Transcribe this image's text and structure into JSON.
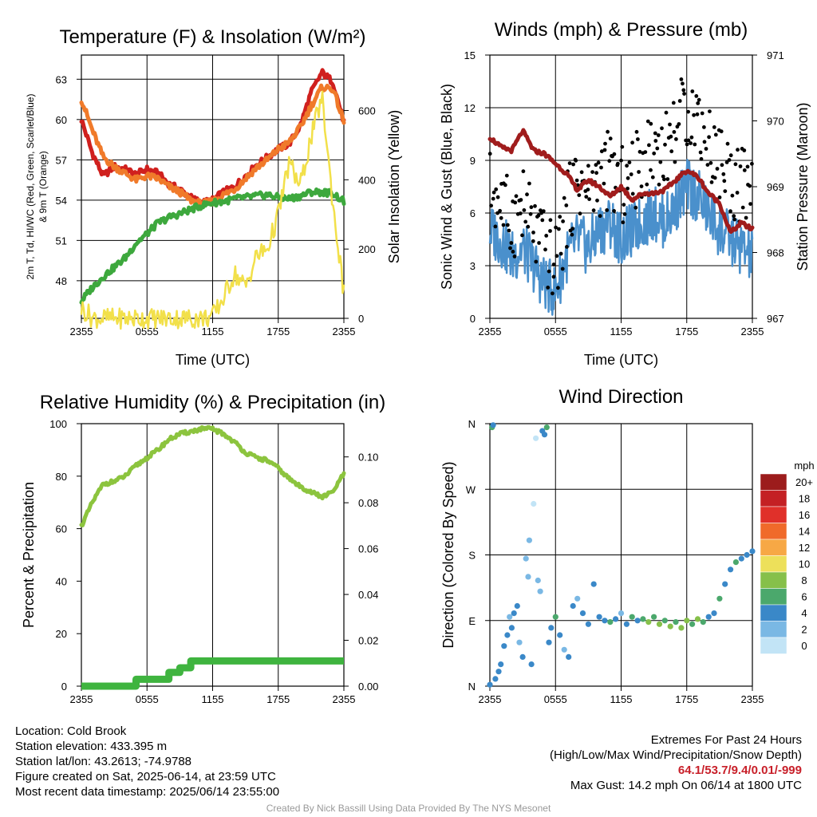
{
  "chart_data": [
    {
      "type": "line",
      "title": "Temperature (F) & Insolation (W/m²)",
      "xlabel": "Time (UTC)",
      "ylabel": "2m T, Td, HI/WC (Red, Green, Scarlet/Blue) & 9m T (Orange)",
      "y2label": "Solar Insolation (Yellow)",
      "xticks": [
        "2355",
        "0555",
        "1155",
        "1755",
        "2355"
      ],
      "yticks": [
        48,
        51,
        54,
        57,
        60,
        63
      ],
      "y2ticks": [
        0,
        200,
        400,
        600
      ],
      "ylim": [
        45.2,
        64.8
      ],
      "y2lim": [
        0,
        760
      ],
      "grid": true,
      "x": [
        0,
        1,
        2,
        3,
        4,
        5,
        6,
        7,
        8,
        9,
        10,
        11,
        12,
        13,
        14,
        15,
        16,
        17,
        18,
        19,
        20,
        21,
        22,
        23,
        24
      ],
      "series": [
        {
          "name": "2m T",
          "color": "#d0201e",
          "axis": "left",
          "values": [
            60.0,
            57.5,
            55.8,
            56.5,
            56.3,
            55.9,
            56.3,
            56.0,
            55.2,
            54.8,
            54.2,
            53.8,
            54.0,
            54.6,
            55.0,
            55.8,
            56.6,
            57.2,
            57.8,
            58.2,
            59.5,
            62.0,
            63.5,
            62.8,
            59.8
          ]
        },
        {
          "name": "9m T",
          "color": "#f07a2a",
          "axis": "left",
          "values": [
            61.5,
            59.2,
            57.2,
            56.5,
            56.0,
            55.5,
            55.8,
            55.6,
            55.0,
            54.6,
            54.0,
            53.7,
            53.9,
            54.4,
            54.8,
            55.6,
            56.4,
            57.0,
            57.8,
            58.3,
            59.4,
            61.0,
            62.4,
            62.3,
            59.8
          ]
        },
        {
          "name": "Td",
          "color": "#3da83d",
          "axis": "left",
          "values": [
            46.5,
            47.5,
            48.3,
            49.0,
            49.7,
            50.8,
            51.5,
            52.3,
            52.7,
            53.0,
            53.3,
            53.6,
            53.8,
            53.9,
            54.1,
            54.2,
            54.3,
            54.4,
            54.2,
            54.1,
            54.3,
            54.6,
            54.6,
            54.5,
            53.9
          ]
        },
        {
          "name": "Solar Insolation",
          "color": "#f2e04a",
          "axis": "right",
          "values": [
            30,
            2,
            0,
            0,
            0,
            0,
            0,
            0,
            0,
            0,
            0,
            0,
            5,
            60,
            130,
            90,
            180,
            200,
            300,
            450,
            380,
            520,
            640,
            330,
            70
          ]
        }
      ]
    },
    {
      "type": "line",
      "title": "Winds (mph) & Pressure (mb)",
      "xlabel": "Time (UTC)",
      "ylabel": "Sonic Wind & Gust (Blue, Black)",
      "y2label": "Station Pressure (Maroon)",
      "xticks": [
        "2355",
        "0555",
        "1155",
        "1755",
        "2355"
      ],
      "yticks": [
        0,
        3,
        6,
        9,
        12,
        15
      ],
      "y2ticks": [
        967,
        968,
        969,
        970,
        971
      ],
      "ylim": [
        0,
        15
      ],
      "y2lim": [
        967,
        971
      ],
      "grid": true,
      "x": [
        0,
        1,
        2,
        3,
        4,
        5,
        6,
        7,
        8,
        9,
        10,
        11,
        12,
        13,
        14,
        15,
        16,
        17,
        18,
        19,
        20,
        21,
        22,
        23,
        24
      ],
      "series": [
        {
          "name": "Sonic Wind",
          "color": "#4a90cc",
          "axis": "left",
          "values": [
            5.0,
            4.5,
            3.5,
            4.0,
            3.0,
            2.0,
            1.5,
            3.5,
            4.5,
            4.0,
            5.0,
            5.5,
            4.5,
            5.0,
            5.5,
            6.0,
            5.5,
            6.5,
            7.5,
            7.0,
            6.0,
            5.0,
            4.5,
            4.0,
            3.5
          ]
        },
        {
          "name": "Gust",
          "color": "#000000",
          "axis": "left",
          "values": [
            7.5,
            6.5,
            5.5,
            6.5,
            5.0,
            4.0,
            3.0,
            6.0,
            8.0,
            7.0,
            8.0,
            8.5,
            7.5,
            8.0,
            9.0,
            10.0,
            9.5,
            11.0,
            12.0,
            11.5,
            10.0,
            9.0,
            8.0,
            7.5,
            7.0
          ]
        },
        {
          "name": "Station Pressure",
          "color": "#a01c1c",
          "axis": "right",
          "values": [
            969.75,
            969.6,
            969.55,
            969.85,
            969.55,
            969.5,
            969.35,
            969.2,
            968.95,
            969.1,
            969.0,
            968.85,
            969.0,
            968.8,
            968.9,
            968.9,
            968.95,
            969.1,
            969.25,
            969.15,
            968.9,
            968.75,
            968.3,
            968.45,
            968.35
          ]
        }
      ]
    },
    {
      "type": "line",
      "title": "Relative Humidity (%) & Precipitation (in)",
      "xlabel": "",
      "ylabel": "Percent & Precipitation",
      "xticks": [
        "2355",
        "0555",
        "1155",
        "1755",
        "2355"
      ],
      "yticks": [
        0,
        20,
        40,
        60,
        80,
        100
      ],
      "y2ticks": [
        "0.00",
        "0.02",
        "0.04",
        "0.06",
        "0.08",
        "0.10"
      ],
      "ylim": [
        0,
        100
      ],
      "y2lim": [
        0,
        0.1145
      ],
      "grid": true,
      "x": [
        0,
        1,
        2,
        3,
        4,
        5,
        6,
        7,
        8,
        9,
        10,
        11,
        12,
        13,
        14,
        15,
        16,
        17,
        18,
        19,
        20,
        21,
        22,
        23,
        24
      ],
      "series": [
        {
          "name": "Relative Humidity",
          "color": "#8cc43e",
          "axis": "left",
          "values": [
            61,
            70,
            77,
            78,
            80,
            84,
            87,
            90,
            94,
            96,
            97,
            98,
            98,
            96,
            93,
            89,
            87,
            86,
            83,
            79,
            76,
            74,
            72,
            74,
            81
          ]
        },
        {
          "name": "Precipitation",
          "color": "#3fb43f",
          "axis": "right",
          "values": [
            0,
            0,
            0,
            0,
            0,
            0.003,
            0.003,
            0.003,
            0.006,
            0.008,
            0.011,
            0.011,
            0.011,
            0.011,
            0.011,
            0.011,
            0.011,
            0.011,
            0.011,
            0.011,
            0.011,
            0.011,
            0.011,
            0.011,
            0.011
          ]
        }
      ]
    },
    {
      "type": "scatter",
      "title": "Wind Direction",
      "xlabel": "",
      "ylabel": "Direction (Colored By Speed)",
      "xticks": [
        "2355",
        "0555",
        "1155",
        "1755",
        "2355"
      ],
      "yticks": [
        "N",
        "E",
        "S",
        "W",
        "N"
      ],
      "ylim": [
        0,
        360
      ],
      "grid": true,
      "legend": {
        "title": "mph",
        "labels": [
          "20+",
          "18",
          "16",
          "14",
          "12",
          "10",
          "8",
          "6",
          "4",
          "2",
          "0"
        ],
        "colors": [
          "#9c1c1c",
          "#c42024",
          "#e0302a",
          "#f06a2a",
          "#f7a845",
          "#ede05a",
          "#86c04a",
          "#4ba86c",
          "#3a88c8",
          "#7ab8e4",
          "#c2e4f6"
        ],
        "placement": "right"
      },
      "points": [
        {
          "x": 0.0,
          "dir": 2,
          "speed": 4
        },
        {
          "x": 0.2,
          "dir": 355,
          "speed": 6
        },
        {
          "x": 0.3,
          "dir": 358,
          "speed": 4
        },
        {
          "x": 0.5,
          "dir": 10,
          "speed": 4
        },
        {
          "x": 0.8,
          "dir": 20,
          "speed": 4
        },
        {
          "x": 1.0,
          "dir": 30,
          "speed": 4
        },
        {
          "x": 1.3,
          "dir": 55,
          "speed": 4
        },
        {
          "x": 1.6,
          "dir": 70,
          "speed": 4
        },
        {
          "x": 1.8,
          "dir": 95,
          "speed": 2
        },
        {
          "x": 2.0,
          "dir": 80,
          "speed": 4
        },
        {
          "x": 2.2,
          "dir": 100,
          "speed": 4
        },
        {
          "x": 2.5,
          "dir": 110,
          "speed": 4
        },
        {
          "x": 2.7,
          "dir": 60,
          "speed": 2
        },
        {
          "x": 3.0,
          "dir": 40,
          "speed": 4
        },
        {
          "x": 3.3,
          "dir": 175,
          "speed": 2
        },
        {
          "x": 3.5,
          "dir": 150,
          "speed": 2
        },
        {
          "x": 3.6,
          "dir": 200,
          "speed": 2
        },
        {
          "x": 3.8,
          "dir": 30,
          "speed": 4
        },
        {
          "x": 4.0,
          "dir": 250,
          "speed": 0
        },
        {
          "x": 4.2,
          "dir": 340,
          "speed": 0
        },
        {
          "x": 4.4,
          "dir": 145,
          "speed": 2
        },
        {
          "x": 4.6,
          "dir": 130,
          "speed": 2
        },
        {
          "x": 4.8,
          "dir": 350,
          "speed": 4
        },
        {
          "x": 5.0,
          "dir": 345,
          "speed": 4
        },
        {
          "x": 5.2,
          "dir": 355,
          "speed": 6
        },
        {
          "x": 5.4,
          "dir": 60,
          "speed": 4
        },
        {
          "x": 5.6,
          "dir": 80,
          "speed": 4
        },
        {
          "x": 6.0,
          "dir": 95,
          "speed": 6
        },
        {
          "x": 6.4,
          "dir": 70,
          "speed": 4
        },
        {
          "x": 6.8,
          "dir": 50,
          "speed": 2
        },
        {
          "x": 7.2,
          "dir": 40,
          "speed": 4
        },
        {
          "x": 7.6,
          "dir": 110,
          "speed": 4
        },
        {
          "x": 8.0,
          "dir": 120,
          "speed": 2
        },
        {
          "x": 8.5,
          "dir": 100,
          "speed": 4
        },
        {
          "x": 9.0,
          "dir": 85,
          "speed": 4
        },
        {
          "x": 9.5,
          "dir": 140,
          "speed": 4
        },
        {
          "x": 10.0,
          "dir": 95,
          "speed": 4
        },
        {
          "x": 10.5,
          "dir": 90,
          "speed": 4
        },
        {
          "x": 11.0,
          "dir": 88,
          "speed": 6
        },
        {
          "x": 11.5,
          "dir": 92,
          "speed": 4
        },
        {
          "x": 12.0,
          "dir": 100,
          "speed": 2
        },
        {
          "x": 12.5,
          "dir": 85,
          "speed": 4
        },
        {
          "x": 13.0,
          "dir": 95,
          "speed": 6
        },
        {
          "x": 13.5,
          "dir": 90,
          "speed": 4
        },
        {
          "x": 14.0,
          "dir": 92,
          "speed": 6
        },
        {
          "x": 14.5,
          "dir": 88,
          "speed": 8
        },
        {
          "x": 15.0,
          "dir": 95,
          "speed": 6
        },
        {
          "x": 15.5,
          "dir": 85,
          "speed": 8
        },
        {
          "x": 16.0,
          "dir": 90,
          "speed": 6
        },
        {
          "x": 16.5,
          "dir": 82,
          "speed": 8
        },
        {
          "x": 17.0,
          "dir": 88,
          "speed": 6
        },
        {
          "x": 17.5,
          "dir": 80,
          "speed": 8
        },
        {
          "x": 18.0,
          "dir": 90,
          "speed": 8
        },
        {
          "x": 18.5,
          "dir": 85,
          "speed": 6
        },
        {
          "x": 19.0,
          "dir": 92,
          "speed": 8
        },
        {
          "x": 19.5,
          "dir": 88,
          "speed": 6
        },
        {
          "x": 20.0,
          "dir": 95,
          "speed": 4
        },
        {
          "x": 20.5,
          "dir": 100,
          "speed": 4
        },
        {
          "x": 21.0,
          "dir": 120,
          "speed": 6
        },
        {
          "x": 21.5,
          "dir": 140,
          "speed": 4
        },
        {
          "x": 22.0,
          "dir": 160,
          "speed": 4
        },
        {
          "x": 22.5,
          "dir": 170,
          "speed": 6
        },
        {
          "x": 23.0,
          "dir": 175,
          "speed": 4
        },
        {
          "x": 23.5,
          "dir": 180,
          "speed": 4
        },
        {
          "x": 24.0,
          "dir": 185,
          "speed": 4
        }
      ]
    }
  ],
  "footer": {
    "location": "Location: Cold Brook",
    "elevation": "Station elevation: 433.395 m",
    "latlon": "Station lat/lon: 43.2613; -74.9788",
    "created": "Figure created on Sat, 2025-06-14, at 23:59 UTC",
    "recent": "Most recent data timestamp: 2025/06/14 23:55:00",
    "extremes_title": "Extremes For Past 24 Hours",
    "extremes_subtitle": "(High/Low/Max Wind/Precipitation/Snow Depth)",
    "extremes_values": "64.1/53.7/9.4/0.01/-999",
    "max_gust": "Max Gust: 14.2 mph On 06/14 at 1800 UTC"
  },
  "credit": "Created By Nick Bassill Using Data Provided By The NYS Mesonet"
}
